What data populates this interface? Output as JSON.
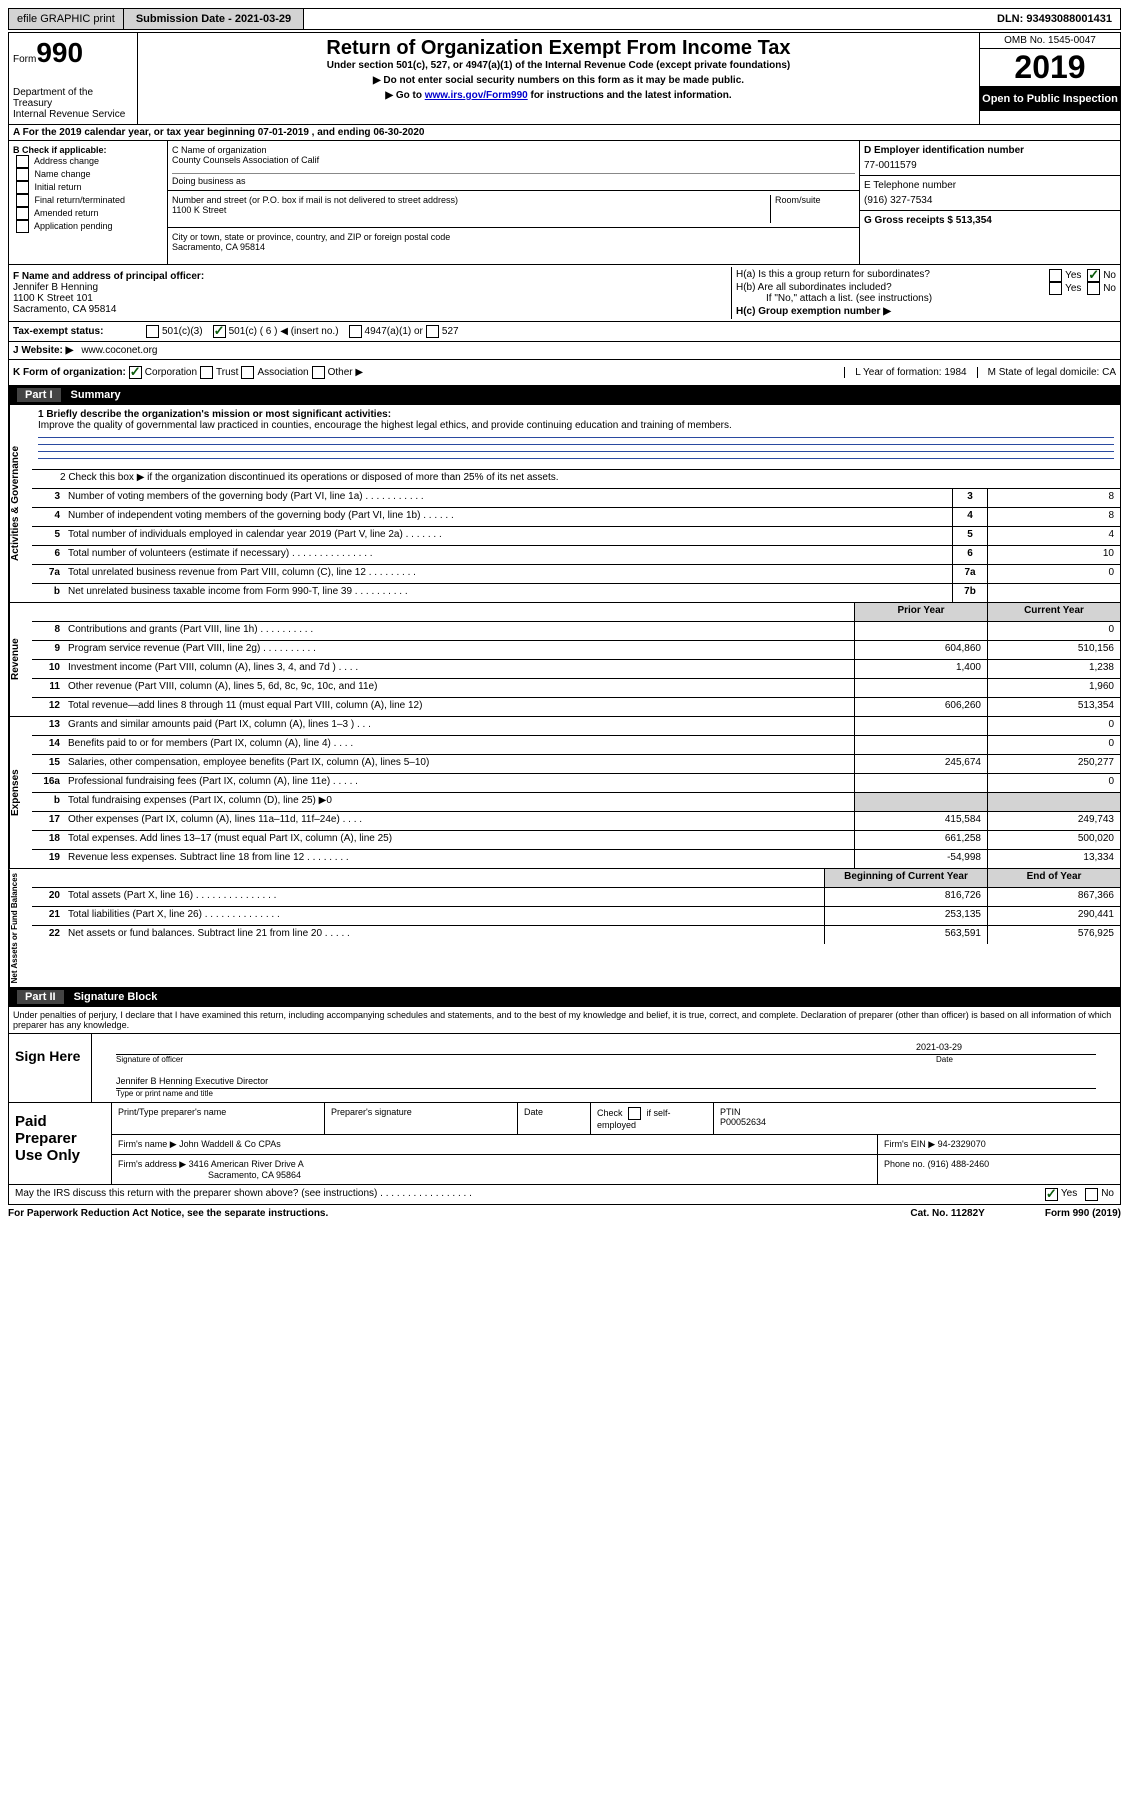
{
  "topbar": {
    "efile": "efile GRAPHIC print",
    "submission": "Submission Date - 2021-03-29",
    "dln": "DLN: 93493088001431"
  },
  "header": {
    "form_label": "Form",
    "form_num": "990",
    "dept": "Department of the Treasury\nInternal Revenue Service",
    "title": "Return of Organization Exempt From Income Tax",
    "sub1": "Under section 501(c), 527, or 4947(a)(1) of the Internal Revenue Code (except private foundations)",
    "sub2": "▶ Do not enter social security numbers on this form as it may be made public.",
    "sub3_pre": "▶ Go to ",
    "sub3_link": "www.irs.gov/Form990",
    "sub3_post": " for instructions and the latest information.",
    "omb": "OMB No. 1545-0047",
    "year": "2019",
    "open": "Open to Public Inspection"
  },
  "sec_a": "A For the 2019 calendar year, or tax year beginning 07-01-2019   , and ending 06-30-2020",
  "col_b": {
    "label": "B Check if applicable:",
    "opts": [
      "Address change",
      "Name change",
      "Initial return",
      "Final return/terminated",
      "Amended return",
      "Application pending"
    ]
  },
  "col_c": {
    "name_label": "C Name of organization",
    "name": "County Counsels Association of Calif",
    "dba": "Doing business as",
    "addr_label": "Number and street (or P.O. box if mail is not delivered to street address)",
    "room": "Room/suite",
    "addr": "1100 K Street",
    "city_label": "City or town, state or province, country, and ZIP or foreign postal code",
    "city": "Sacramento, CA  95814"
  },
  "col_d": {
    "label": "D Employer identification number",
    "val": "77-0011579"
  },
  "col_e": {
    "label": "E Telephone number",
    "val": "(916) 327-7534"
  },
  "col_g": {
    "label": "G Gross receipts $ 513,354"
  },
  "col_f": {
    "label": "F  Name and address of principal officer:",
    "name": "Jennifer B Henning",
    "l1": "1100 K Street 101",
    "l2": "Sacramento, CA  95814"
  },
  "col_h": {
    "a": "H(a)  Is this a group return for subordinates?",
    "b": "H(b)  Are all subordinates included?",
    "note": "If \"No,\" attach a list. (see instructions)",
    "c": "H(c)  Group exemption number ▶",
    "yes": "Yes",
    "no": "No"
  },
  "tax_status": {
    "label": "Tax-exempt status:",
    "o1": "501(c)(3)",
    "o2": "501(c) ( 6 ) ◀ (insert no.)",
    "o3": "4947(a)(1) or",
    "o4": "527"
  },
  "website": {
    "label": "J   Website: ▶",
    "val": "www.coconet.org"
  },
  "row_k": {
    "label": "K Form of organization:",
    "o1": "Corporation",
    "o2": "Trust",
    "o3": "Association",
    "o4": "Other ▶",
    "l_label": "L Year of formation: 1984",
    "m_label": "M State of legal domicile: CA"
  },
  "part1": {
    "num": "Part I",
    "title": "Summary"
  },
  "mission": {
    "q": "1  Briefly describe the organization's mission or most significant activities:",
    "a": "Improve the quality of governmental law practiced in counties, encourage the highest legal ethics, and provide continuing education and training of members."
  },
  "line2": "2  Check this box ▶  if the organization discontinued its operations or disposed of more than 25% of its net assets.",
  "gov": [
    {
      "n": "3",
      "d": "Number of voting members of the governing body (Part VI, line 1a)  .  .  .  .  .  .  .  .  .  .  .",
      "b": "3",
      "v": "8"
    },
    {
      "n": "4",
      "d": "Number of independent voting members of the governing body (Part VI, line 1b)  .  .  .  .  .  .",
      "b": "4",
      "v": "8"
    },
    {
      "n": "5",
      "d": "Total number of individuals employed in calendar year 2019 (Part V, line 2a)  .  .  .  .  .  .  .",
      "b": "5",
      "v": "4"
    },
    {
      "n": "6",
      "d": "Total number of volunteers (estimate if necessary)  .  .  .  .  .  .  .  .  .  .  .  .  .  .  .",
      "b": "6",
      "v": "10"
    },
    {
      "n": "7a",
      "d": "Total unrelated business revenue from Part VIII, column (C), line 12  .  .  .  .  .  .  .  .  .",
      "b": "7a",
      "v": "0"
    },
    {
      "n": "b",
      "d": "Net unrelated business taxable income from Form 990-T, line 39  .  .  .  .  .  .  .  .  .  .",
      "b": "7b",
      "v": ""
    }
  ],
  "py_hdr": "Prior Year",
  "cy_hdr": "Current Year",
  "rev": [
    {
      "n": "8",
      "d": "Contributions and grants (Part VIII, line 1h)  .  .  .  .  .  .  .  .  .  .",
      "p": "",
      "c": "0"
    },
    {
      "n": "9",
      "d": "Program service revenue (Part VIII, line 2g)  .  .  .  .  .  .  .  .  .  .",
      "p": "604,860",
      "c": "510,156"
    },
    {
      "n": "10",
      "d": "Investment income (Part VIII, column (A), lines 3, 4, and 7d )  .  .  .  .",
      "p": "1,400",
      "c": "1,238"
    },
    {
      "n": "11",
      "d": "Other revenue (Part VIII, column (A), lines 5, 6d, 8c, 9c, 10c, and 11e)",
      "p": "",
      "c": "1,960"
    },
    {
      "n": "12",
      "d": "Total revenue—add lines 8 through 11 (must equal Part VIII, column (A), line 12)",
      "p": "606,260",
      "c": "513,354"
    }
  ],
  "exp": [
    {
      "n": "13",
      "d": "Grants and similar amounts paid (Part IX, column (A), lines 1–3 )  .  .  .",
      "p": "",
      "c": "0"
    },
    {
      "n": "14",
      "d": "Benefits paid to or for members (Part IX, column (A), line 4)  .  .  .  .",
      "p": "",
      "c": "0"
    },
    {
      "n": "15",
      "d": "Salaries, other compensation, employee benefits (Part IX, column (A), lines 5–10)",
      "p": "245,674",
      "c": "250,277"
    },
    {
      "n": "16a",
      "d": "Professional fundraising fees (Part IX, column (A), line 11e)  .  .  .  .  .",
      "p": "",
      "c": "0"
    },
    {
      "n": "b",
      "d": "Total fundraising expenses (Part IX, column (D), line 25) ▶0",
      "p": "GREY",
      "c": "GREY"
    },
    {
      "n": "17",
      "d": "Other expenses (Part IX, column (A), lines 11a–11d, 11f–24e)  .  .  .  .",
      "p": "415,584",
      "c": "249,743"
    },
    {
      "n": "18",
      "d": "Total expenses. Add lines 13–17 (must equal Part IX, column (A), line 25)",
      "p": "661,258",
      "c": "500,020"
    },
    {
      "n": "19",
      "d": "Revenue less expenses. Subtract line 18 from line 12  .  .  .  .  .  .  .  .",
      "p": "-54,998",
      "c": "13,334"
    }
  ],
  "na_hdr1": "Beginning of Current Year",
  "na_hdr2": "End of Year",
  "na": [
    {
      "n": "20",
      "d": "Total assets (Part X, line 16)  .  .  .  .  .  .  .  .  .  .  .  .  .  .  .",
      "p": "816,726",
      "c": "867,366"
    },
    {
      "n": "21",
      "d": "Total liabilities (Part X, line 26)  .  .  .  .  .  .  .  .  .  .  .  .  .  .",
      "p": "253,135",
      "c": "290,441"
    },
    {
      "n": "22",
      "d": "Net assets or fund balances. Subtract line 21 from line 20  .  .  .  .  .",
      "p": "563,591",
      "c": "576,925"
    }
  ],
  "part2": {
    "num": "Part II",
    "title": "Signature Block"
  },
  "penalties": "Under penalties of perjury, I declare that I have examined this return, including accompanying schedules and statements, and to the best of my knowledge and belief, it is true, correct, and complete. Declaration of preparer (other than officer) is based on all information of which preparer has any knowledge.",
  "sign": {
    "here": "Sign Here",
    "sig_label": "Signature of officer",
    "date_label": "Date",
    "date": "2021-03-29",
    "name": "Jennifer B Henning Executive Director",
    "name_label": "Type or print name and title"
  },
  "prep": {
    "label": "Paid Preparer Use Only",
    "h1": "Print/Type preparer's name",
    "h2": "Preparer's signature",
    "h3": "Date",
    "h4": "Check  if self-employed",
    "h5": "PTIN",
    "ptin": "P00052634",
    "firm_label": "Firm's name  ▶",
    "firm": "John Waddell & Co CPAs",
    "ein_label": "Firm's EIN ▶",
    "ein": "94-2329070",
    "addr_label": "Firm's address ▶",
    "addr1": "3416 American River Drive A",
    "addr2": "Sacramento, CA  95864",
    "phone_label": "Phone no.",
    "phone": "(916) 488-2460"
  },
  "discuss": "May the IRS discuss this return with the preparer shown above? (see instructions)  .  .  .  .  .  .  .  .  .  .  .  .  .  .  .  .  .",
  "footer": {
    "left": "For Paperwork Reduction Act Notice, see the separate instructions.",
    "mid": "Cat. No. 11282Y",
    "right": "Form 990 (2019)"
  }
}
